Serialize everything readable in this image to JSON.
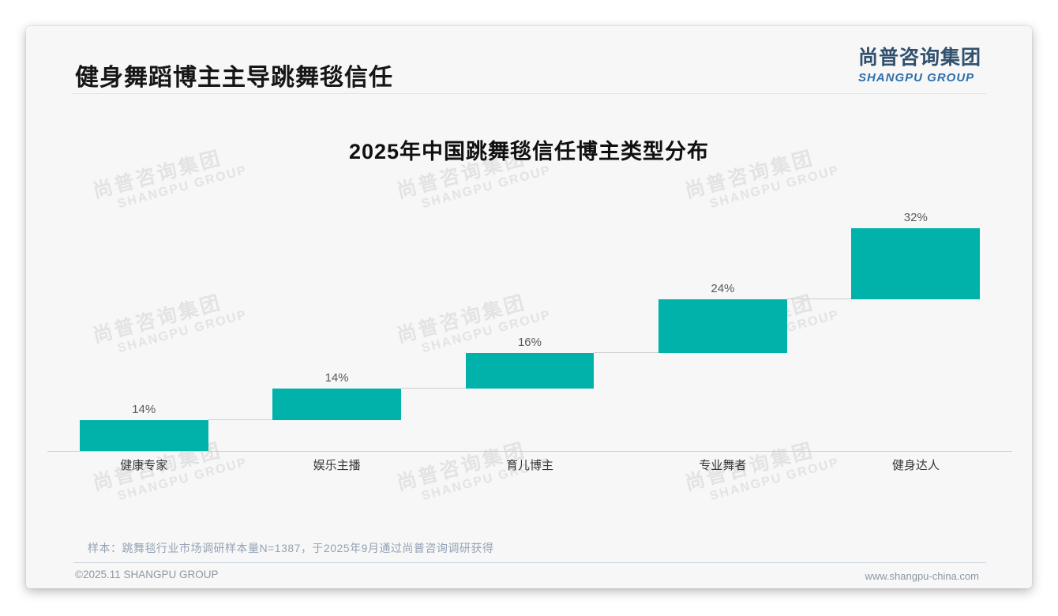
{
  "header": {
    "title": "健身舞蹈博主主导跳舞毯信任",
    "logo_cn": "尚普咨询集团",
    "logo_en": "SHANGPU GROUP"
  },
  "watermark": {
    "line1": "尚普咨询集团",
    "line2": "SHANGPU GROUP"
  },
  "chart_data": {
    "type": "bar",
    "subtype": "waterfall",
    "title": "2025年中国跳舞毯信任博主类型分布",
    "categories": [
      "健康专家",
      "娱乐主播",
      "育儿博主",
      "专业舞者",
      "健身达人"
    ],
    "values": [
      14,
      14,
      16,
      24,
      32
    ],
    "value_labels": [
      "14%",
      "14%",
      "16%",
      "24%",
      "32%"
    ],
    "cumulative_end": [
      14,
      28,
      44,
      68,
      100
    ],
    "unit": "%",
    "xlabel": "",
    "ylabel": "",
    "ylim": [
      0,
      100
    ],
    "grid": "off",
    "legend": "none",
    "bar_color": "#00b2aa",
    "connector_color": "#cfcfcf",
    "baseline_color": "#cfcfcf",
    "value_label_color": "#595959"
  },
  "footer": {
    "footnote": "样本：跳舞毯行业市场调研样本量N=1387，于2025年9月通过尚普咨询调研获得",
    "copyright": "©2025.11 SHANGPU GROUP",
    "website": "www.shangpu-china.com"
  },
  "colors": {
    "bar_teal": "#00b2aa",
    "logo_navy": "#31506e",
    "logo_blue": "#2f6fae",
    "card_bg": "#f7f7f7",
    "watermark_gray": "#e3e3e3"
  }
}
